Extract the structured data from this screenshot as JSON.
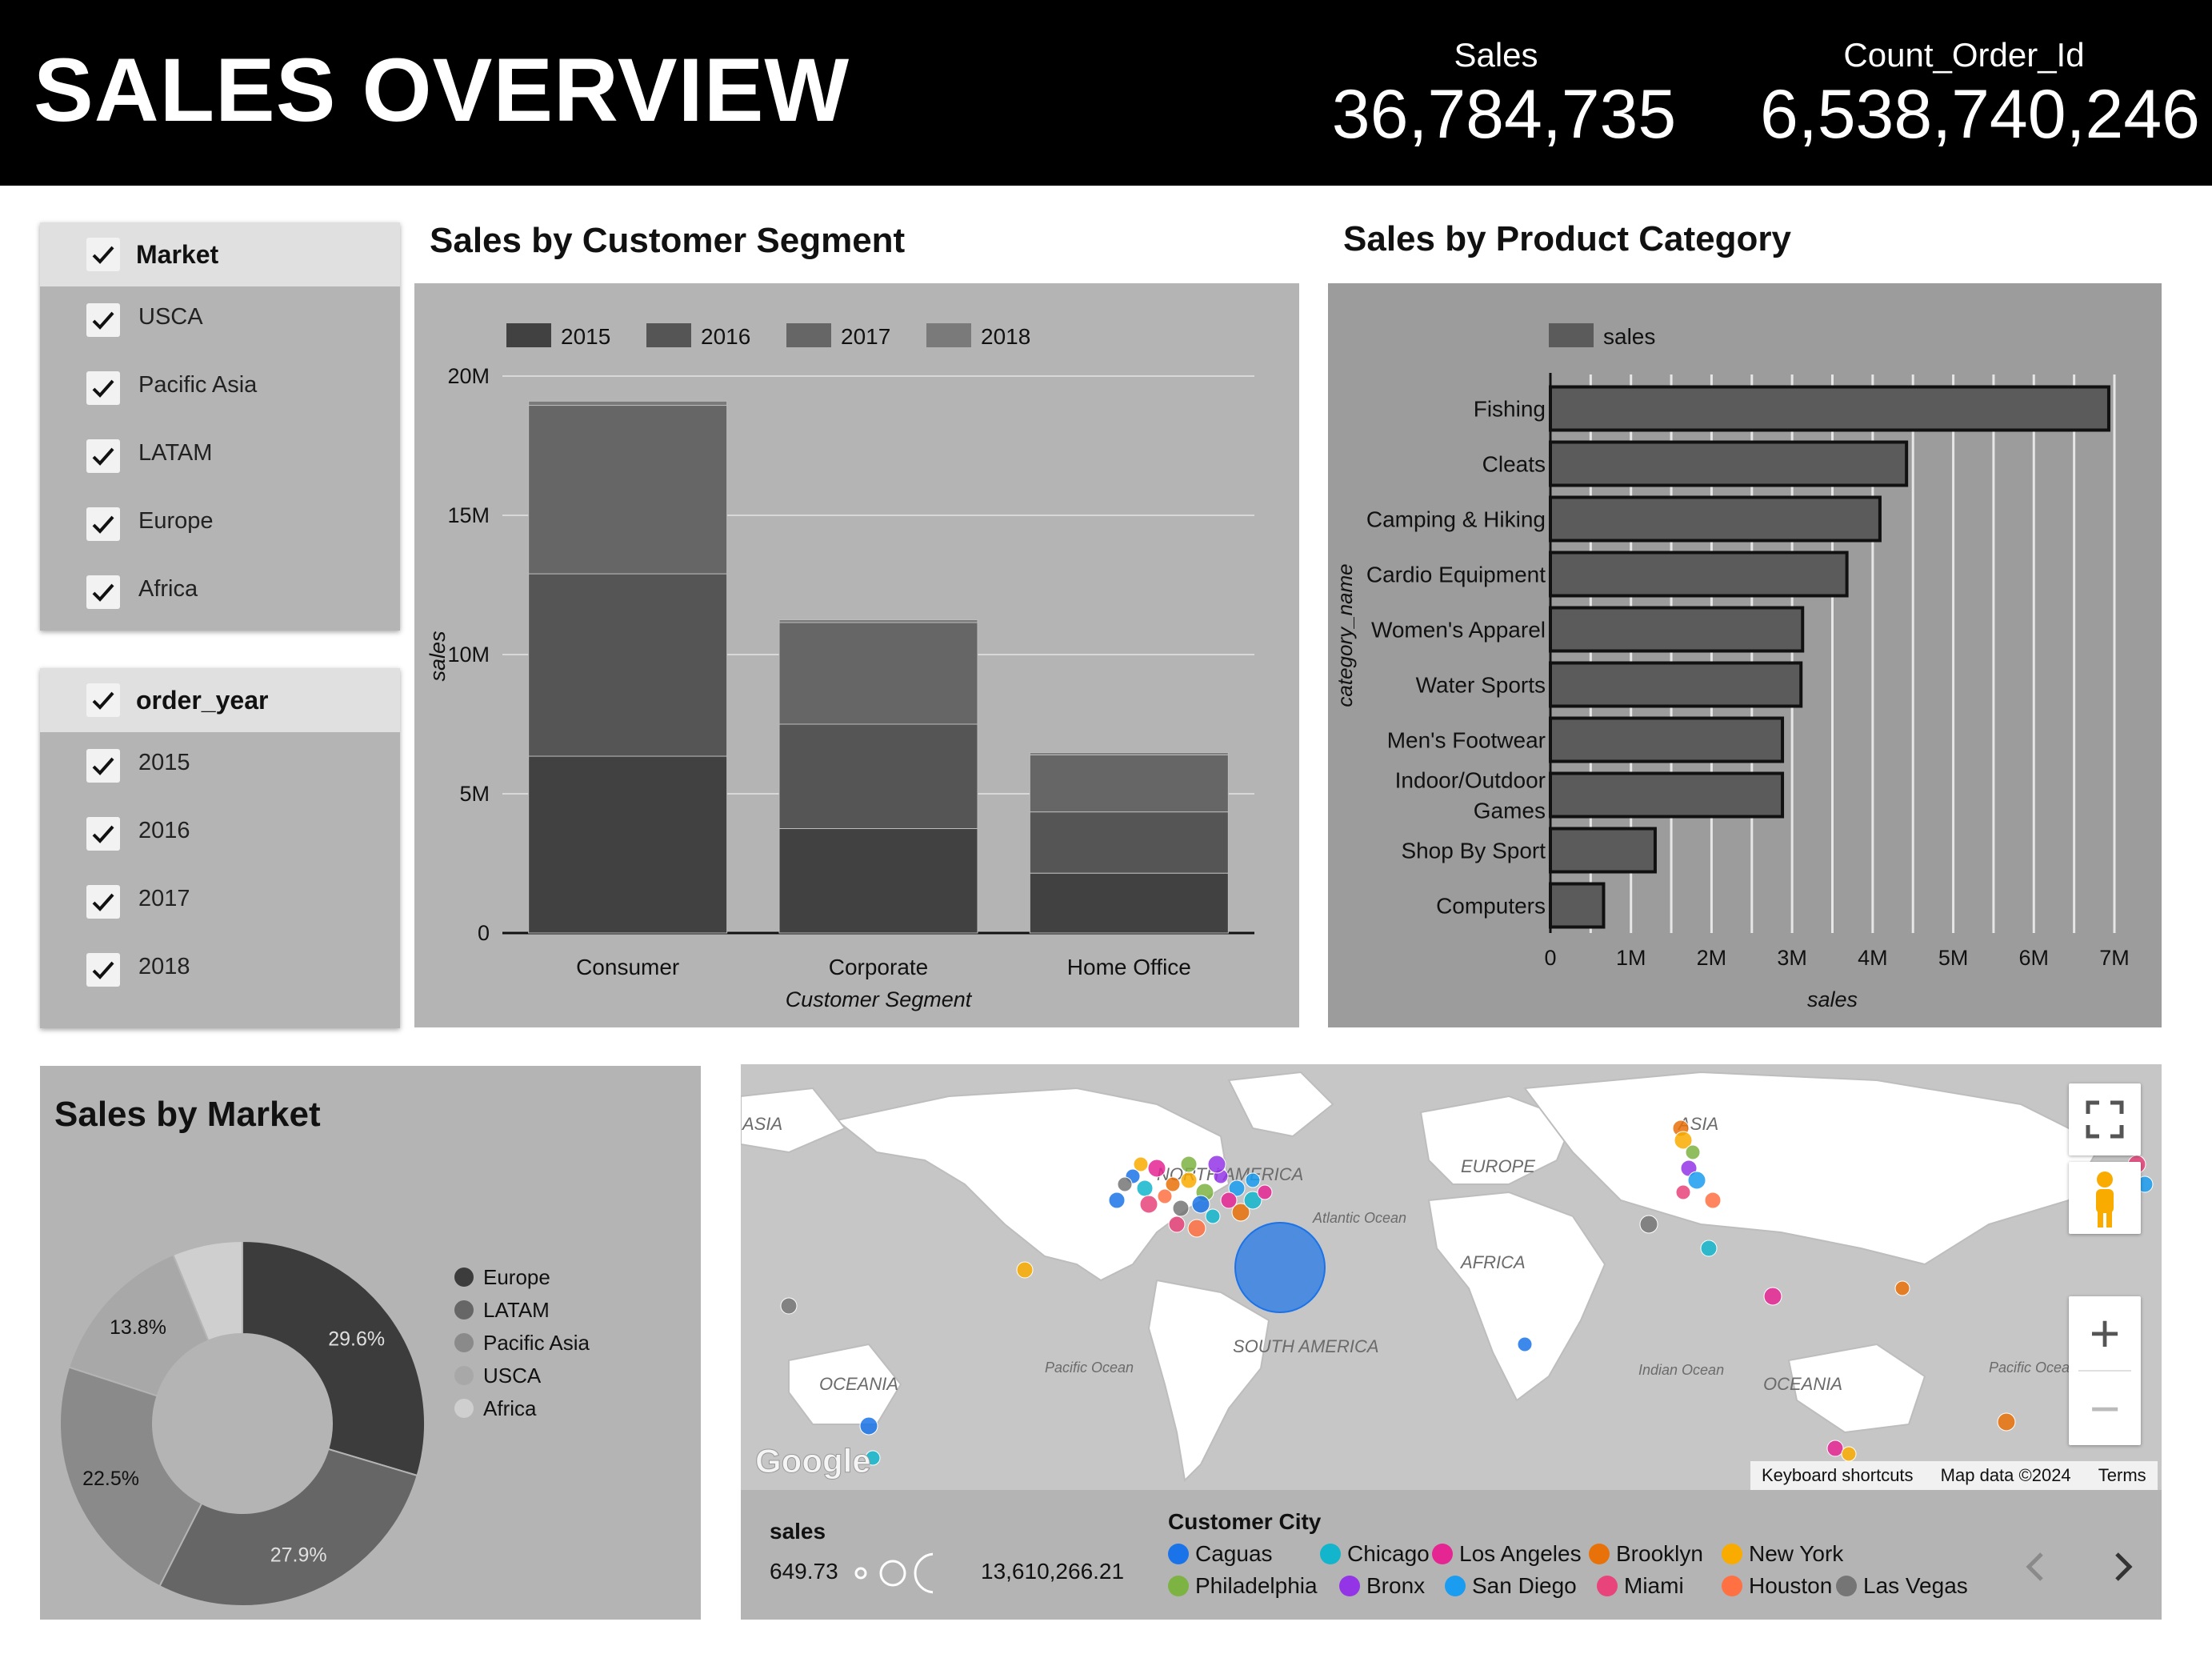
{
  "header": {
    "title": "SALES OVERVIEW",
    "kpis": [
      {
        "label": "Sales",
        "value": "36,784,735"
      },
      {
        "label": "Count_Order_Id",
        "value": "6,538,740,246"
      }
    ]
  },
  "filters": {
    "market": {
      "label": "Market",
      "items": [
        "USCA",
        "Pacific Asia",
        "LATAM",
        "Europe",
        "Africa"
      ]
    },
    "order_year": {
      "label": "order_year",
      "items": [
        "2015",
        "2016",
        "2017",
        "2018"
      ]
    }
  },
  "segment_chart": {
    "section_title": "Sales by Customer Segment",
    "legend": [
      "2015",
      "2016",
      "2017",
      "2018"
    ],
    "yticks": [
      "20M",
      "15M",
      "10M",
      "5M",
      "0"
    ],
    "categories": [
      "Consumer",
      "Corporate",
      "Home Office"
    ],
    "xlabel": "Customer Segment",
    "ylabel": "sales"
  },
  "category_chart": {
    "section_title": "Sales by Product Category",
    "legend": "sales",
    "categories": [
      "Fishing",
      "Cleats",
      "Camping & Hiking",
      "Cardio Equipment",
      "Women's Apparel",
      "Water Sports",
      "Men's Footwear",
      "Indoor/Outdoor Games",
      "Shop By Sport",
      "Computers"
    ],
    "category_lines": [
      [
        "Fishing"
      ],
      [
        "Cleats"
      ],
      [
        "Camping & Hiking"
      ],
      [
        "Cardio Equipment"
      ],
      [
        "Women's Apparel"
      ],
      [
        "Water Sports"
      ],
      [
        "Men's Footwear"
      ],
      [
        "Indoor/Outdoor",
        "Games"
      ],
      [
        "Shop By Sport"
      ],
      [
        "Computers"
      ]
    ],
    "xticks": [
      "0",
      "1M",
      "2M",
      "3M",
      "4M",
      "5M",
      "6M",
      "7M"
    ],
    "xlabel": "sales",
    "ylabel": "category_name"
  },
  "market_chart": {
    "section_title": "Sales by Market",
    "legend": [
      "Europe",
      "LATAM",
      "Pacific Asia",
      "USCA",
      "Africa"
    ],
    "slice_labels": [
      "29.6%",
      "27.9%",
      "22.5%",
      "13.8%"
    ]
  },
  "chart_data": [
    {
      "type": "bar",
      "stacked": true,
      "title": "Sales by Customer Segment",
      "categories": [
        "Consumer",
        "Corporate",
        "Home Office"
      ],
      "series": [
        {
          "name": "2015",
          "values": [
            6350000,
            3750000,
            2150000
          ]
        },
        {
          "name": "2016",
          "values": [
            6550000,
            3750000,
            2200000
          ]
        },
        {
          "name": "2017",
          "values": [
            6050000,
            3650000,
            2050000
          ]
        },
        {
          "name": "2018",
          "values": [
            150000,
            100000,
            80000
          ]
        }
      ],
      "xlabel": "Customer Segment",
      "ylabel": "sales",
      "ylim": [
        0,
        20000000
      ],
      "legend": "top-left",
      "grid": true
    },
    {
      "type": "bar",
      "orientation": "horizontal",
      "title": "Sales by Product Category",
      "categories": [
        "Fishing",
        "Cleats",
        "Camping & Hiking",
        "Cardio Equipment",
        "Women's Apparel",
        "Water Sports",
        "Men's Footwear",
        "Indoor/Outdoor Games",
        "Shop By Sport",
        "Computers"
      ],
      "series": [
        {
          "name": "sales",
          "values": [
            6930000,
            4420000,
            4090000,
            3680000,
            3130000,
            3110000,
            2880000,
            2880000,
            1300000,
            660000
          ]
        }
      ],
      "xlabel": "sales",
      "ylabel": "category_name",
      "xlim": [
        0,
        7000000
      ],
      "legend": "top-left",
      "grid": true
    },
    {
      "type": "pie",
      "donut": true,
      "title": "Sales by Market",
      "categories": [
        "Europe",
        "LATAM",
        "Pacific Asia",
        "USCA",
        "Africa"
      ],
      "values": [
        29.6,
        27.9,
        22.5,
        13.8,
        6.2
      ],
      "legend": "right"
    }
  ],
  "map": {
    "region_labels": [
      "ASIA",
      "NORTH AMERICA",
      "EUROPE",
      "ASIA",
      "Atlantic Ocean",
      "AFRICA",
      "SOUTH AMERICA",
      "OCEANIA",
      "Pacific Ocean",
      "Indian Ocean",
      "OCEANIA",
      "Pacific Ocean"
    ],
    "attribution": {
      "logo": "Google",
      "shortcuts": "Keyboard shortcuts",
      "data": "Map data ©2024",
      "terms": "Terms"
    },
    "controls": {
      "fullscreen": "fullscreen-icon",
      "pegman": "pegman-icon",
      "zoom_in": "+",
      "zoom_out": "−"
    }
  },
  "map_legend": {
    "size_title": "sales",
    "size_min": "649.73",
    "size_max": "13,610,266.21",
    "color_title": "Customer City",
    "cities": [
      {
        "name": "Caguas",
        "color": "#1a73e8"
      },
      {
        "name": "Chicago",
        "color": "#12b5cb"
      },
      {
        "name": "Los Angeles",
        "color": "#e52592"
      },
      {
        "name": "Brooklyn",
        "color": "#e8710a"
      },
      {
        "name": "New York",
        "color": "#f9ab00"
      },
      {
        "name": "Philadelphia",
        "color": "#7cb342"
      },
      {
        "name": "Bronx",
        "color": "#9334e6"
      },
      {
        "name": "San Diego",
        "color": "#1a9cf0"
      },
      {
        "name": "Miami",
        "color": "#e8437a"
      },
      {
        "name": "Houston",
        "color": "#ff7043"
      },
      {
        "name": "Las Vegas",
        "color": "#757575"
      }
    ],
    "nav": {
      "prev": "chevron-left-icon",
      "next": "chevron-right-icon"
    }
  },
  "colors": {
    "header_bg": "#000000",
    "panel_bg": "#b4b4b4",
    "panel_dark_bg": "#9c9c9c",
    "series": [
      "#414141",
      "#555555",
      "#666666",
      "#7a7a7a"
    ],
    "bar_fill": "#5b5b5b",
    "pie": [
      "#3c3c3c",
      "#666666",
      "#8a8a8a",
      "#a8a8a8",
      "#cfcfcf"
    ]
  }
}
